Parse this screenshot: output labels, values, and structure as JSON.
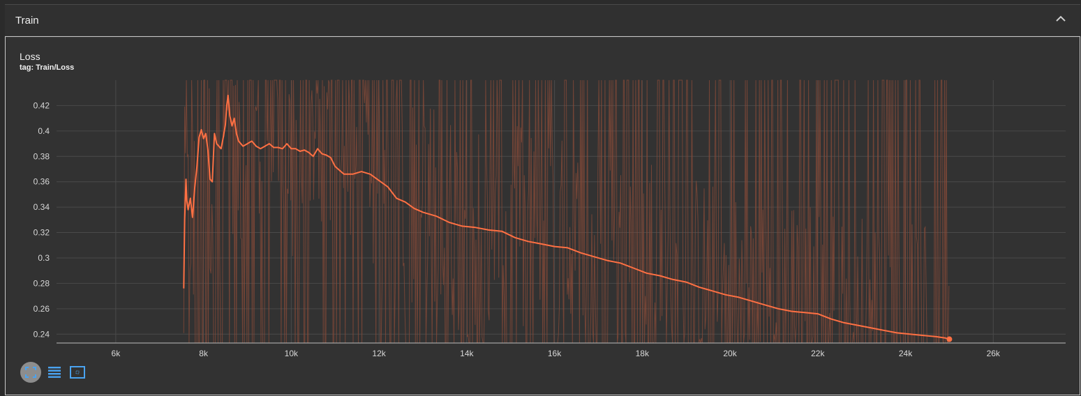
{
  "panel": {
    "title": "Train"
  },
  "card": {
    "title": "Loss",
    "tag": "tag: Train/Loss"
  },
  "colors": {
    "smoothed": "#ff7043",
    "raw": "#8a4b38",
    "grid": "#4a4a4a",
    "axis": "#bdbdbd",
    "toolbar_icon": "#4aa3f0"
  },
  "icons": {
    "collapse": "chevron-up-icon",
    "fit": "fit-domain-icon",
    "log": "log-scale-icon",
    "download": "expand-icon"
  },
  "chart_data": {
    "type": "line",
    "title": "Loss",
    "xlabel": "",
    "ylabel": "",
    "xlim": [
      4650,
      27650
    ],
    "ylim": [
      0.233,
      0.44
    ],
    "grid": true,
    "x_ticks": [
      6000,
      8000,
      10000,
      12000,
      14000,
      16000,
      18000,
      20000,
      22000,
      24000,
      26000
    ],
    "x_tick_labels": [
      "6k",
      "8k",
      "10k",
      "12k",
      "14k",
      "16k",
      "18k",
      "20k",
      "22k",
      "24k",
      "26k"
    ],
    "y_ticks": [
      0.24,
      0.26,
      0.28,
      0.3,
      0.32,
      0.34,
      0.36,
      0.38,
      0.4,
      0.42
    ],
    "y_tick_labels": [
      "0.24",
      "0.26",
      "0.28",
      "0.3",
      "0.32",
      "0.34",
      "0.36",
      "0.38",
      "0.4",
      "0.42"
    ],
    "series": [
      {
        "name": "Train/Loss (smoothed)",
        "x": [
          7550,
          7570,
          7600,
          7620,
          7650,
          7700,
          7750,
          7800,
          7850,
          7900,
          7950,
          8000,
          8050,
          8100,
          8150,
          8200,
          8250,
          8300,
          8350,
          8400,
          8450,
          8500,
          8530,
          8560,
          8600,
          8650,
          8700,
          8750,
          8800,
          8900,
          9000,
          9100,
          9200,
          9300,
          9400,
          9500,
          9600,
          9700,
          9800,
          9900,
          10000,
          10100,
          10200,
          10300,
          10400,
          10500,
          10600,
          10700,
          10800,
          10900,
          11000,
          11200,
          11400,
          11600,
          11800,
          12000,
          12200,
          12400,
          12600,
          12800,
          13000,
          13300,
          13600,
          13900,
          14200,
          14500,
          14800,
          15100,
          15400,
          15700,
          16000,
          16300,
          16600,
          16900,
          17200,
          17500,
          17800,
          18100,
          18400,
          18700,
          19000,
          19300,
          19600,
          19900,
          20200,
          20500,
          20800,
          21100,
          21400,
          21700,
          22000,
          22300,
          22600,
          22900,
          23200,
          23500,
          23800,
          24100,
          24400,
          24700,
          24900,
          25000
        ],
        "values": [
          0.276,
          0.33,
          0.362,
          0.345,
          0.338,
          0.347,
          0.332,
          0.355,
          0.372,
          0.395,
          0.401,
          0.394,
          0.398,
          0.385,
          0.362,
          0.36,
          0.398,
          0.39,
          0.388,
          0.386,
          0.395,
          0.405,
          0.42,
          0.428,
          0.412,
          0.404,
          0.41,
          0.398,
          0.392,
          0.388,
          0.39,
          0.392,
          0.388,
          0.386,
          0.388,
          0.39,
          0.387,
          0.387,
          0.386,
          0.39,
          0.386,
          0.386,
          0.384,
          0.385,
          0.383,
          0.38,
          0.386,
          0.382,
          0.381,
          0.379,
          0.372,
          0.366,
          0.366,
          0.368,
          0.366,
          0.361,
          0.356,
          0.347,
          0.344,
          0.339,
          0.336,
          0.333,
          0.328,
          0.325,
          0.324,
          0.322,
          0.321,
          0.316,
          0.313,
          0.311,
          0.309,
          0.308,
          0.304,
          0.301,
          0.298,
          0.296,
          0.292,
          0.288,
          0.286,
          0.283,
          0.281,
          0.277,
          0.274,
          0.271,
          0.269,
          0.266,
          0.263,
          0.26,
          0.258,
          0.257,
          0.256,
          0.252,
          0.249,
          0.247,
          0.245,
          0.243,
          0.241,
          0.24,
          0.239,
          0.238,
          0.237,
          0.236
        ]
      }
    ]
  }
}
